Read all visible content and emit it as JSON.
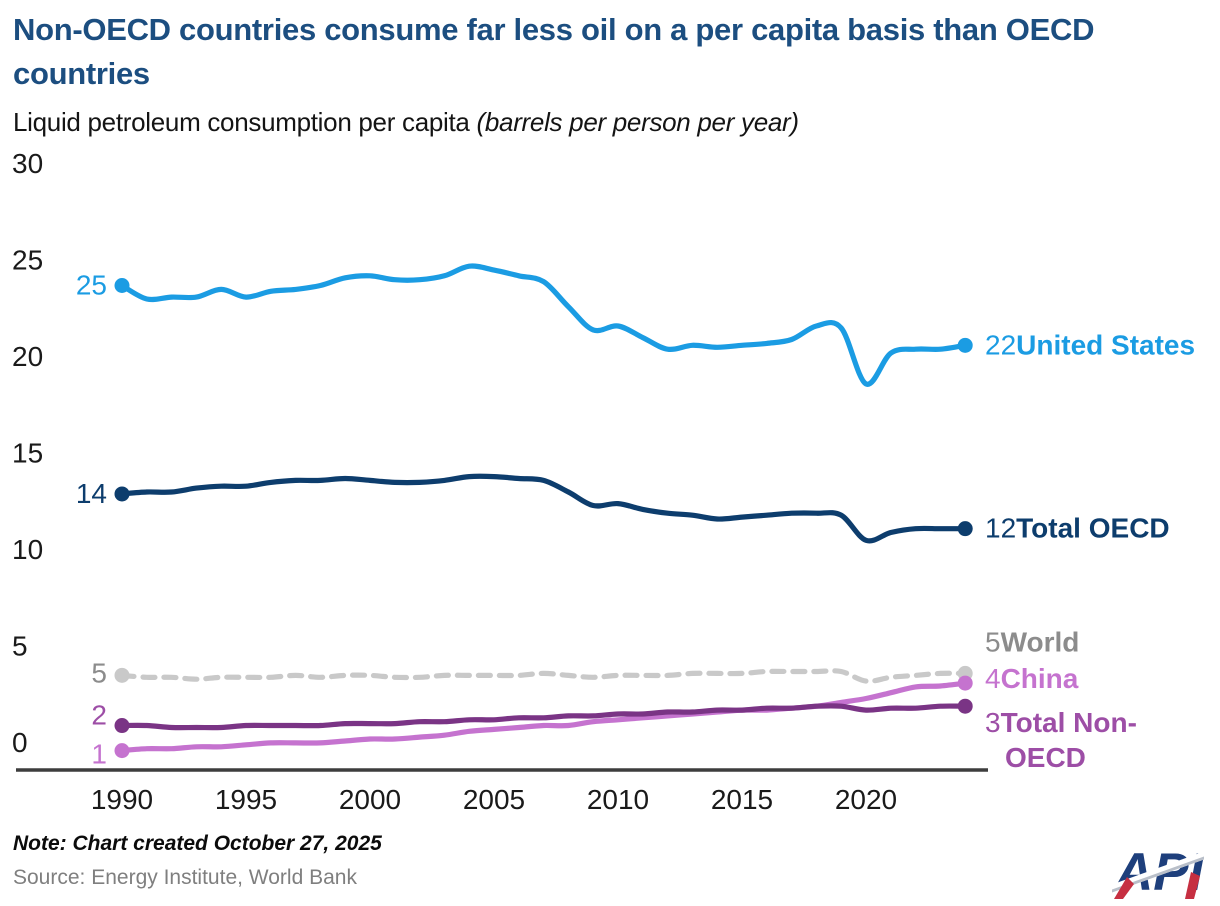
{
  "header": {
    "title": "Non-OECD countries consume far less oil on a per capita basis than OECD countries",
    "subtitle_regular": "Liquid petroleum consumption per capita ",
    "subtitle_italic": "(barrels per person per year)"
  },
  "chart_data": {
    "type": "line",
    "x": [
      1990,
      1991,
      1992,
      1993,
      1994,
      1995,
      1996,
      1997,
      1998,
      1999,
      2000,
      2001,
      2002,
      2003,
      2004,
      2005,
      2006,
      2007,
      2008,
      2009,
      2010,
      2011,
      2012,
      2013,
      2014,
      2015,
      2016,
      2017,
      2018,
      2019,
      2020,
      2021,
      2022,
      2023,
      2024
    ],
    "x_ticks": [
      1990,
      1995,
      2000,
      2005,
      2010,
      2015,
      2020
    ],
    "y_ticks": [
      0,
      5,
      10,
      15,
      20,
      25,
      30
    ],
    "ylim": [
      0,
      30
    ],
    "grid": false,
    "legend_position": "right-inline-labels",
    "series": [
      {
        "name": "United States",
        "color": "#1b9ce3",
        "label_color": "#1b9ce3",
        "dashed": false,
        "start_label": "25",
        "end_label": "22",
        "values": [
          25.0,
          24.3,
          24.4,
          24.4,
          24.8,
          24.4,
          24.7,
          24.8,
          25.0,
          25.4,
          25.5,
          25.3,
          25.3,
          25.5,
          26.0,
          25.8,
          25.5,
          25.2,
          23.9,
          22.7,
          22.9,
          22.3,
          21.7,
          21.9,
          21.8,
          21.9,
          22.0,
          22.2,
          22.9,
          22.8,
          19.9,
          21.5,
          21.7,
          21.7,
          21.9
        ]
      },
      {
        "name": "Total OECD",
        "color": "#0d3d6d",
        "label_color": "#0d3d6d",
        "dashed": false,
        "start_label": "14",
        "end_label": "12",
        "values": [
          14.2,
          14.3,
          14.3,
          14.5,
          14.6,
          14.6,
          14.8,
          14.9,
          14.9,
          15.0,
          14.9,
          14.8,
          14.8,
          14.9,
          15.1,
          15.1,
          15.0,
          14.9,
          14.3,
          13.6,
          13.7,
          13.4,
          13.2,
          13.1,
          12.9,
          13.0,
          13.1,
          13.2,
          13.2,
          13.1,
          11.8,
          12.2,
          12.4,
          12.4,
          12.4
        ]
      },
      {
        "name": "World",
        "color": "#c9c9c9",
        "label_color": "#8c8c8c",
        "dashed": true,
        "start_label": "5",
        "end_label": "5",
        "values": [
          4.8,
          4.7,
          4.7,
          4.6,
          4.7,
          4.7,
          4.7,
          4.8,
          4.7,
          4.8,
          4.8,
          4.7,
          4.7,
          4.8,
          4.8,
          4.8,
          4.8,
          4.9,
          4.8,
          4.7,
          4.8,
          4.8,
          4.8,
          4.9,
          4.9,
          4.9,
          5.0,
          5.0,
          5.0,
          5.0,
          4.5,
          4.7,
          4.8,
          4.9,
          4.9
        ]
      },
      {
        "name": "China",
        "color": "#c573cf",
        "label_color": "#c573cf",
        "dashed": false,
        "start_label": "1",
        "end_label": "4",
        "values": [
          0.9,
          1.0,
          1.0,
          1.1,
          1.1,
          1.2,
          1.3,
          1.3,
          1.3,
          1.4,
          1.5,
          1.5,
          1.6,
          1.7,
          1.9,
          2.0,
          2.1,
          2.2,
          2.2,
          2.4,
          2.5,
          2.6,
          2.7,
          2.8,
          2.9,
          3.0,
          3.0,
          3.1,
          3.2,
          3.4,
          3.6,
          3.9,
          4.2,
          4.25,
          4.4
        ]
      },
      {
        "name": "Total Non-OECD",
        "color": "#7a3485",
        "label_color": "#9d4ea6",
        "dashed": false,
        "start_label": "2",
        "end_label": "3",
        "name_lines": [
          "Total Non-",
          "OECD"
        ],
        "values": [
          2.2,
          2.2,
          2.1,
          2.1,
          2.1,
          2.2,
          2.2,
          2.2,
          2.2,
          2.3,
          2.3,
          2.3,
          2.4,
          2.4,
          2.5,
          2.5,
          2.6,
          2.6,
          2.7,
          2.7,
          2.8,
          2.8,
          2.9,
          2.9,
          3.0,
          3.0,
          3.1,
          3.1,
          3.2,
          3.2,
          3.0,
          3.1,
          3.1,
          3.2,
          3.2
        ]
      }
    ]
  },
  "footer": {
    "note": "Note: Chart created October 27, 2025",
    "source": "Source: Energy Institute, World Bank"
  },
  "logo": {
    "text": "API"
  }
}
